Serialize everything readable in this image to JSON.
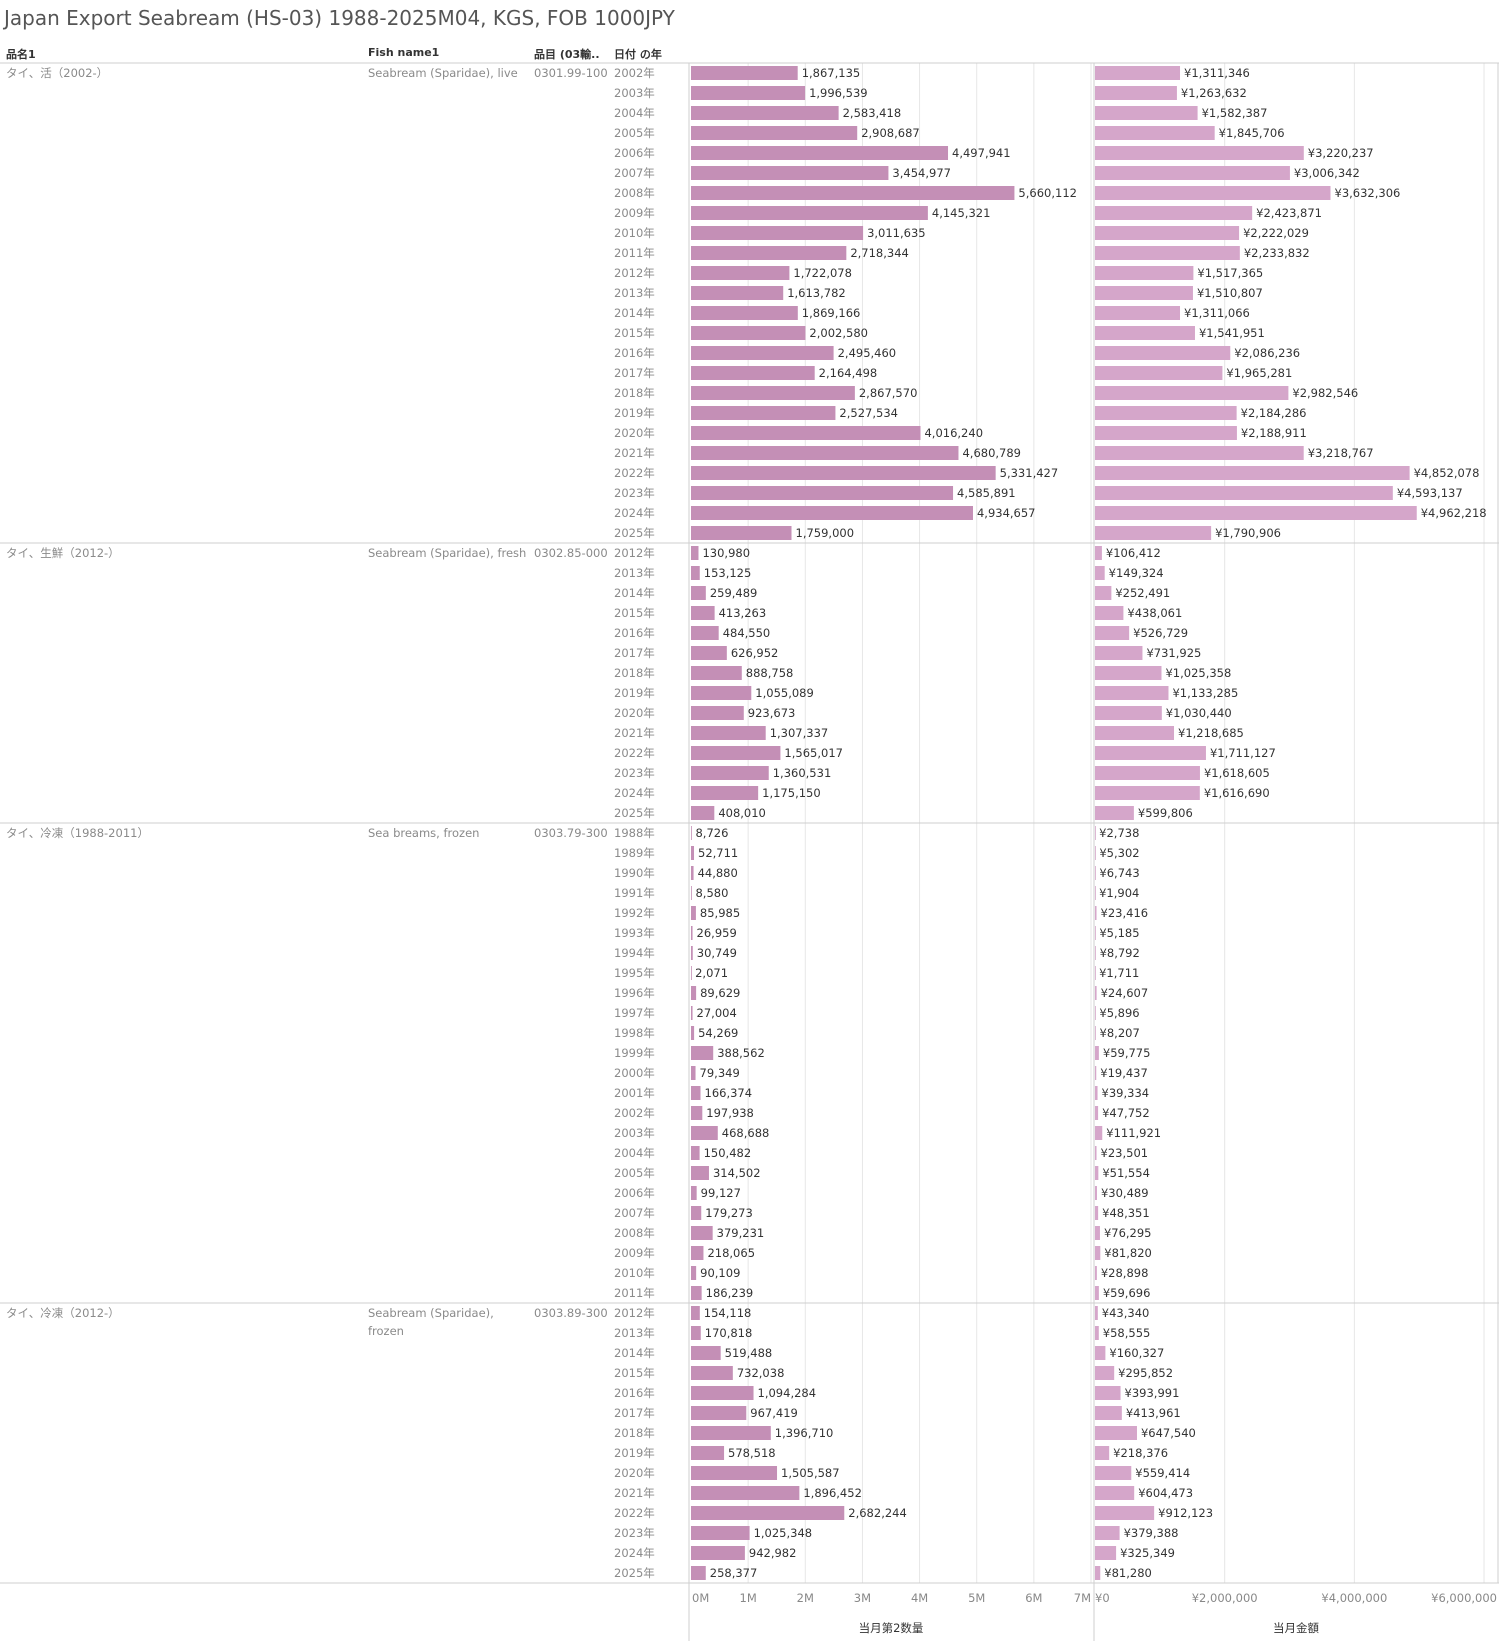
{
  "title": "Japan Export Seabream (HS-03) 1988-2025M04, KGS, FOB 1000JPY",
  "headers": {
    "col1": "品名1",
    "col2": "Fish name1",
    "col3": "品目 (03輸..",
    "col4": "日付 の年"
  },
  "year_suffix": "年",
  "colors": {
    "qty_bar": "#c48fb6",
    "val_bar": "#d5a6ca",
    "grid": "#e6e6e6",
    "divider": "#cfcfcf",
    "label_dim": "#8a8a8a"
  },
  "chart_data": {
    "type": "bar",
    "orientation": "horizontal",
    "measures": [
      {
        "name": "当月第2数量",
        "xlim": [
          0,
          7000000
        ],
        "ticks": [
          0,
          1000000,
          2000000,
          3000000,
          4000000,
          5000000,
          6000000,
          7000000
        ],
        "tick_labels": [
          "0M",
          "1M",
          "2M",
          "3M",
          "4M",
          "5M",
          "6M",
          "7M"
        ]
      },
      {
        "name": "当月金額",
        "xlim": [
          0,
          6200000
        ],
        "ticks": [
          0,
          2000000,
          4000000,
          6000000
        ],
        "tick_labels": [
          "¥0",
          "¥2,000,000",
          "¥4,000,000",
          "¥6,000,000"
        ]
      }
    ],
    "groups": [
      {
        "name_jp": "タイ、活（2002-）",
        "name_en": "Seabream (Sparidae), live",
        "code": "0301.99-100",
        "rows": [
          {
            "year": "2002",
            "qty": 1867135,
            "qty_label": "1,867,135",
            "val": 1311346,
            "val_label": "¥1,311,346"
          },
          {
            "year": "2003",
            "qty": 1996539,
            "qty_label": "1,996,539",
            "val": 1263632,
            "val_label": "¥1,263,632"
          },
          {
            "year": "2004",
            "qty": 2583418,
            "qty_label": "2,583,418",
            "val": 1582387,
            "val_label": "¥1,582,387"
          },
          {
            "year": "2005",
            "qty": 2908687,
            "qty_label": "2,908,687",
            "val": 1845706,
            "val_label": "¥1,845,706"
          },
          {
            "year": "2006",
            "qty": 4497941,
            "qty_label": "4,497,941",
            "val": 3220237,
            "val_label": "¥3,220,237"
          },
          {
            "year": "2007",
            "qty": 3454977,
            "qty_label": "3,454,977",
            "val": 3006342,
            "val_label": "¥3,006,342"
          },
          {
            "year": "2008",
            "qty": 5660112,
            "qty_label": "5,660,112",
            "val": 3632306,
            "val_label": "¥3,632,306"
          },
          {
            "year": "2009",
            "qty": 4145321,
            "qty_label": "4,145,321",
            "val": 2423871,
            "val_label": "¥2,423,871"
          },
          {
            "year": "2010",
            "qty": 3011635,
            "qty_label": "3,011,635",
            "val": 2222029,
            "val_label": "¥2,222,029"
          },
          {
            "year": "2011",
            "qty": 2718344,
            "qty_label": "2,718,344",
            "val": 2233832,
            "val_label": "¥2,233,832"
          },
          {
            "year": "2012",
            "qty": 1722078,
            "qty_label": "1,722,078",
            "val": 1517365,
            "val_label": "¥1,517,365"
          },
          {
            "year": "2013",
            "qty": 1613782,
            "qty_label": "1,613,782",
            "val": 1510807,
            "val_label": "¥1,510,807"
          },
          {
            "year": "2014",
            "qty": 1869166,
            "qty_label": "1,869,166",
            "val": 1311066,
            "val_label": "¥1,311,066"
          },
          {
            "year": "2015",
            "qty": 2002580,
            "qty_label": "2,002,580",
            "val": 1541951,
            "val_label": "¥1,541,951"
          },
          {
            "year": "2016",
            "qty": 2495460,
            "qty_label": "2,495,460",
            "val": 2086236,
            "val_label": "¥2,086,236"
          },
          {
            "year": "2017",
            "qty": 2164498,
            "qty_label": "2,164,498",
            "val": 1965281,
            "val_label": "¥1,965,281"
          },
          {
            "year": "2018",
            "qty": 2867570,
            "qty_label": "2,867,570",
            "val": 2982546,
            "val_label": "¥2,982,546"
          },
          {
            "year": "2019",
            "qty": 2527534,
            "qty_label": "2,527,534",
            "val": 2184286,
            "val_label": "¥2,184,286"
          },
          {
            "year": "2020",
            "qty": 4016240,
            "qty_label": "4,016,240",
            "val": 2188911,
            "val_label": "¥2,188,911"
          },
          {
            "year": "2021",
            "qty": 4680789,
            "qty_label": "4,680,789",
            "val": 3218767,
            "val_label": "¥3,218,767"
          },
          {
            "year": "2022",
            "qty": 5331427,
            "qty_label": "5,331,427",
            "val": 4852078,
            "val_label": "¥4,852,078"
          },
          {
            "year": "2023",
            "qty": 4585891,
            "qty_label": "4,585,891",
            "val": 4593137,
            "val_label": "¥4,593,137"
          },
          {
            "year": "2024",
            "qty": 4934657,
            "qty_label": "4,934,657",
            "val": 4962218,
            "val_label": "¥4,962,218"
          },
          {
            "year": "2025",
            "qty": 1759000,
            "qty_label": "1,759,000",
            "val": 1790906,
            "val_label": "¥1,790,906"
          }
        ]
      },
      {
        "name_jp": "タイ、生鮮（2012-）",
        "name_en": "Seabream (Sparidae), fresh",
        "code": "0302.85-000",
        "rows": [
          {
            "year": "2012",
            "qty": 130980,
            "qty_label": "130,980",
            "val": 106412,
            "val_label": "¥106,412"
          },
          {
            "year": "2013",
            "qty": 153125,
            "qty_label": "153,125",
            "val": 149324,
            "val_label": "¥149,324"
          },
          {
            "year": "2014",
            "qty": 259489,
            "qty_label": "259,489",
            "val": 252491,
            "val_label": "¥252,491"
          },
          {
            "year": "2015",
            "qty": 413263,
            "qty_label": "413,263",
            "val": 438061,
            "val_label": "¥438,061"
          },
          {
            "year": "2016",
            "qty": 484550,
            "qty_label": "484,550",
            "val": 526729,
            "val_label": "¥526,729"
          },
          {
            "year": "2017",
            "qty": 626952,
            "qty_label": "626,952",
            "val": 731925,
            "val_label": "¥731,925"
          },
          {
            "year": "2018",
            "qty": 888758,
            "qty_label": "888,758",
            "val": 1025358,
            "val_label": "¥1,025,358"
          },
          {
            "year": "2019",
            "qty": 1055089,
            "qty_label": "1,055,089",
            "val": 1133285,
            "val_label": "¥1,133,285"
          },
          {
            "year": "2020",
            "qty": 923673,
            "qty_label": "923,673",
            "val": 1030440,
            "val_label": "¥1,030,440"
          },
          {
            "year": "2021",
            "qty": 1307337,
            "qty_label": "1,307,337",
            "val": 1218685,
            "val_label": "¥1,218,685"
          },
          {
            "year": "2022",
            "qty": 1565017,
            "qty_label": "1,565,017",
            "val": 1711127,
            "val_label": "¥1,711,127"
          },
          {
            "year": "2023",
            "qty": 1360531,
            "qty_label": "1,360,531",
            "val": 1618605,
            "val_label": "¥1,618,605"
          },
          {
            "year": "2024",
            "qty": 1175150,
            "qty_label": "1,175,150",
            "val": 1616690,
            "val_label": "¥1,616,690"
          },
          {
            "year": "2025",
            "qty": 408010,
            "qty_label": "408,010",
            "val": 599806,
            "val_label": "¥599,806"
          }
        ]
      },
      {
        "name_jp": "タイ、冷凍（1988-2011）",
        "name_en": "Sea breams, frozen",
        "code": "0303.79-300",
        "rows": [
          {
            "year": "1988",
            "qty": 8726,
            "qty_label": "8,726",
            "val": 2738,
            "val_label": "¥2,738"
          },
          {
            "year": "1989",
            "qty": 52711,
            "qty_label": "52,711",
            "val": 5302,
            "val_label": "¥5,302"
          },
          {
            "year": "1990",
            "qty": 44880,
            "qty_label": "44,880",
            "val": 6743,
            "val_label": "¥6,743"
          },
          {
            "year": "1991",
            "qty": 8580,
            "qty_label": "8,580",
            "val": 1904,
            "val_label": "¥1,904"
          },
          {
            "year": "1992",
            "qty": 85985,
            "qty_label": "85,985",
            "val": 23416,
            "val_label": "¥23,416"
          },
          {
            "year": "1993",
            "qty": 26959,
            "qty_label": "26,959",
            "val": 5185,
            "val_label": "¥5,185"
          },
          {
            "year": "1994",
            "qty": 30749,
            "qty_label": "30,749",
            "val": 8792,
            "val_label": "¥8,792"
          },
          {
            "year": "1995",
            "qty": 2071,
            "qty_label": "2,071",
            "val": 1711,
            "val_label": "¥1,711"
          },
          {
            "year": "1996",
            "qty": 89629,
            "qty_label": "89,629",
            "val": 24607,
            "val_label": "¥24,607"
          },
          {
            "year": "1997",
            "qty": 27004,
            "qty_label": "27,004",
            "val": 5896,
            "val_label": "¥5,896"
          },
          {
            "year": "1998",
            "qty": 54269,
            "qty_label": "54,269",
            "val": 8207,
            "val_label": "¥8,207"
          },
          {
            "year": "1999",
            "qty": 388562,
            "qty_label": "388,562",
            "val": 59775,
            "val_label": "¥59,775"
          },
          {
            "year": "2000",
            "qty": 79349,
            "qty_label": "79,349",
            "val": 19437,
            "val_label": "¥19,437"
          },
          {
            "year": "2001",
            "qty": 166374,
            "qty_label": "166,374",
            "val": 39334,
            "val_label": "¥39,334"
          },
          {
            "year": "2002",
            "qty": 197938,
            "qty_label": "197,938",
            "val": 47752,
            "val_label": "¥47,752"
          },
          {
            "year": "2003",
            "qty": 468688,
            "qty_label": "468,688",
            "val": 111921,
            "val_label": "¥111,921"
          },
          {
            "year": "2004",
            "qty": 150482,
            "qty_label": "150,482",
            "val": 23501,
            "val_label": "¥23,501"
          },
          {
            "year": "2005",
            "qty": 314502,
            "qty_label": "314,502",
            "val": 51554,
            "val_label": "¥51,554"
          },
          {
            "year": "2006",
            "qty": 99127,
            "qty_label": "99,127",
            "val": 30489,
            "val_label": "¥30,489"
          },
          {
            "year": "2007",
            "qty": 179273,
            "qty_label": "179,273",
            "val": 48351,
            "val_label": "¥48,351"
          },
          {
            "year": "2008",
            "qty": 379231,
            "qty_label": "379,231",
            "val": 76295,
            "val_label": "¥76,295"
          },
          {
            "year": "2009",
            "qty": 218065,
            "qty_label": "218,065",
            "val": 81820,
            "val_label": "¥81,820"
          },
          {
            "year": "2010",
            "qty": 90109,
            "qty_label": "90,109",
            "val": 28898,
            "val_label": "¥28,898"
          },
          {
            "year": "2011",
            "qty": 186239,
            "qty_label": "186,239",
            "val": 59696,
            "val_label": "¥59,696"
          }
        ]
      },
      {
        "name_jp": "タイ、冷凍（2012-）",
        "name_en": "Seabream (Sparidae), frozen",
        "code": "0303.89-300",
        "rows": [
          {
            "year": "2012",
            "qty": 154118,
            "qty_label": "154,118",
            "val": 43340,
            "val_label": "¥43,340"
          },
          {
            "year": "2013",
            "qty": 170818,
            "qty_label": "170,818",
            "val": 58555,
            "val_label": "¥58,555"
          },
          {
            "year": "2014",
            "qty": 519488,
            "qty_label": "519,488",
            "val": 160327,
            "val_label": "¥160,327"
          },
          {
            "year": "2015",
            "qty": 732038,
            "qty_label": "732,038",
            "val": 295852,
            "val_label": "¥295,852"
          },
          {
            "year": "2016",
            "qty": 1094284,
            "qty_label": "1,094,284",
            "val": 393991,
            "val_label": "¥393,991"
          },
          {
            "year": "2017",
            "qty": 967419,
            "qty_label": "967,419",
            "val": 413961,
            "val_label": "¥413,961"
          },
          {
            "year": "2018",
            "qty": 1396710,
            "qty_label": "1,396,710",
            "val": 647540,
            "val_label": "¥647,540"
          },
          {
            "year": "2019",
            "qty": 578518,
            "qty_label": "578,518",
            "val": 218376,
            "val_label": "¥218,376"
          },
          {
            "year": "2020",
            "qty": 1505587,
            "qty_label": "1,505,587",
            "val": 559414,
            "val_label": "¥559,414"
          },
          {
            "year": "2021",
            "qty": 1896452,
            "qty_label": "1,896,452",
            "val": 604473,
            "val_label": "¥604,473"
          },
          {
            "year": "2022",
            "qty": 2682244,
            "qty_label": "2,682,244",
            "val": 912123,
            "val_label": "¥912,123"
          },
          {
            "year": "2023",
            "qty": 1025348,
            "qty_label": "1,025,348",
            "val": 379388,
            "val_label": "¥379,388"
          },
          {
            "year": "2024",
            "qty": 942982,
            "qty_label": "942,982",
            "val": 325349,
            "val_label": "¥325,349"
          },
          {
            "year": "2025",
            "qty": 258377,
            "qty_label": "258,377",
            "val": 81280,
            "val_label": "¥81,280"
          }
        ]
      }
    ]
  }
}
